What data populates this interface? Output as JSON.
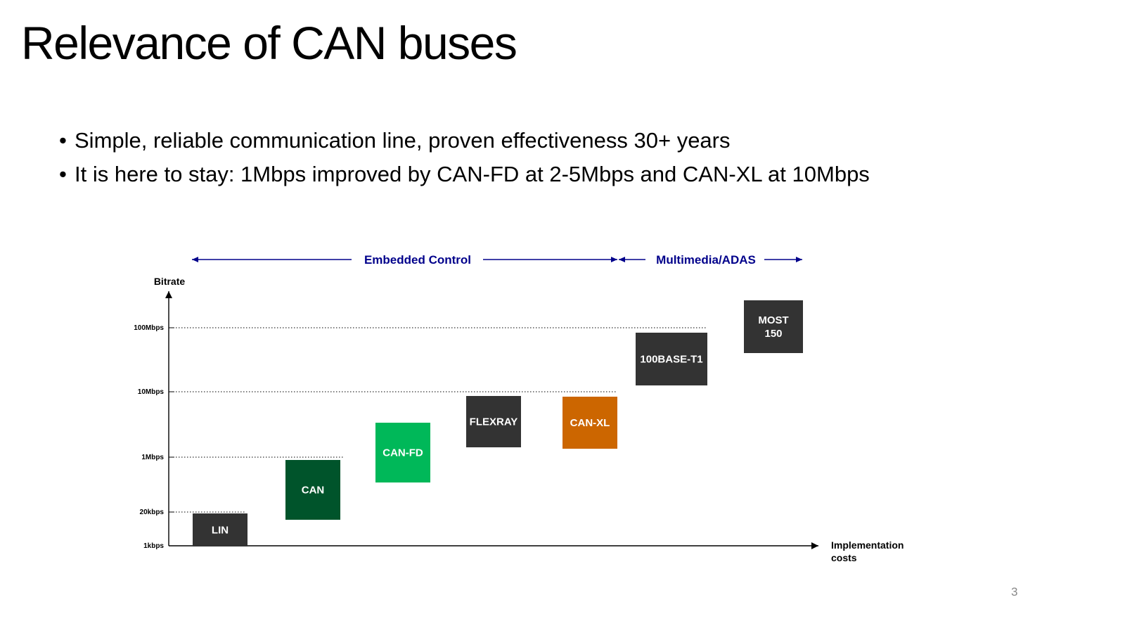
{
  "slide": {
    "title": "Relevance of CAN buses",
    "bullets": [
      "Simple, reliable communication line, proven effectiveness 30+ years",
      "It is here to stay: 1Mbps improved by CAN-FD at 2-5Mbps and CAN-XL at 10Mbps"
    ],
    "page_number": "3"
  },
  "diagram": {
    "y_axis_label": "Bitrate",
    "x_axis_label_lines": [
      "Implementation",
      "costs"
    ],
    "ranges": [
      {
        "label": "Embedded Control"
      },
      {
        "label": "Multimedia/ADAS"
      }
    ],
    "y_levels": [
      {
        "label": "100Mbps",
        "dotted": true
      },
      {
        "label": "10Mbps",
        "dotted": true
      },
      {
        "label": "1Mbps",
        "dotted": true
      },
      {
        "label": "20kbps",
        "dotted": true
      },
      {
        "label": "1kbps",
        "dotted": false
      }
    ],
    "boxes": [
      {
        "lines": [
          "LIN"
        ],
        "color": "#333333"
      },
      {
        "lines": [
          "CAN"
        ],
        "color": "#00542b"
      },
      {
        "lines": [
          "CAN-FD"
        ],
        "color": "#00b859"
      },
      {
        "lines": [
          "FLEXRAY"
        ],
        "color": "#333333"
      },
      {
        "lines": [
          "CAN-XL"
        ],
        "color": "#cc6600"
      },
      {
        "lines": [
          "100BASE-T1"
        ],
        "color": "#333333"
      },
      {
        "lines": [
          "MOST",
          "150"
        ],
        "color": "#333333"
      }
    ],
    "range_color": "#00008b"
  }
}
